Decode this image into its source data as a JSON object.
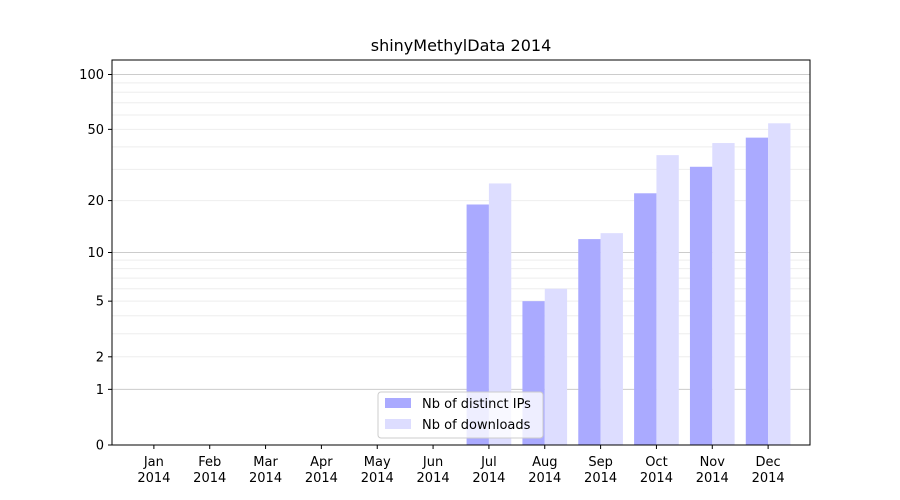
{
  "chart_data": {
    "type": "bar",
    "title": "shinyMethylData 2014",
    "xlabel": "",
    "ylabel": "",
    "categories": [
      {
        "month": "Jan",
        "year": "2014"
      },
      {
        "month": "Feb",
        "year": "2014"
      },
      {
        "month": "Mar",
        "year": "2014"
      },
      {
        "month": "Apr",
        "year": "2014"
      },
      {
        "month": "May",
        "year": "2014"
      },
      {
        "month": "Jun",
        "year": "2014"
      },
      {
        "month": "Jul",
        "year": "2014"
      },
      {
        "month": "Aug",
        "year": "2014"
      },
      {
        "month": "Sep",
        "year": "2014"
      },
      {
        "month": "Oct",
        "year": "2014"
      },
      {
        "month": "Nov",
        "year": "2014"
      },
      {
        "month": "Dec",
        "year": "2014"
      }
    ],
    "series": [
      {
        "name": "Nb of distinct IPs",
        "color": "#aaaaff",
        "values": [
          0,
          0,
          0,
          0,
          0,
          0,
          19,
          5,
          12,
          22,
          31,
          45
        ]
      },
      {
        "name": "Nb of downloads",
        "color": "#ddddff",
        "values": [
          0,
          0,
          0,
          0,
          0,
          0,
          25,
          6,
          13,
          36,
          42,
          54
        ]
      }
    ],
    "y_scale": "log(1+y)",
    "ylim": [
      0,
      120
    ],
    "yticks": [
      {
        "value": 0,
        "label": "0"
      },
      {
        "value": 1,
        "label": "1"
      },
      {
        "value": 2,
        "label": "2"
      },
      {
        "value": 5,
        "label": "5"
      },
      {
        "value": 10,
        "label": "10"
      },
      {
        "value": 20,
        "label": "20"
      },
      {
        "value": 50,
        "label": "50"
      },
      {
        "value": 100,
        "label": "100"
      }
    ],
    "major_grid": [
      1,
      10,
      100
    ],
    "minor_grid": [
      2,
      3,
      4,
      5,
      6,
      7,
      8,
      9,
      20,
      30,
      40,
      50,
      60,
      70,
      80,
      90
    ],
    "grid": true,
    "legend_position": "bottom-center"
  }
}
